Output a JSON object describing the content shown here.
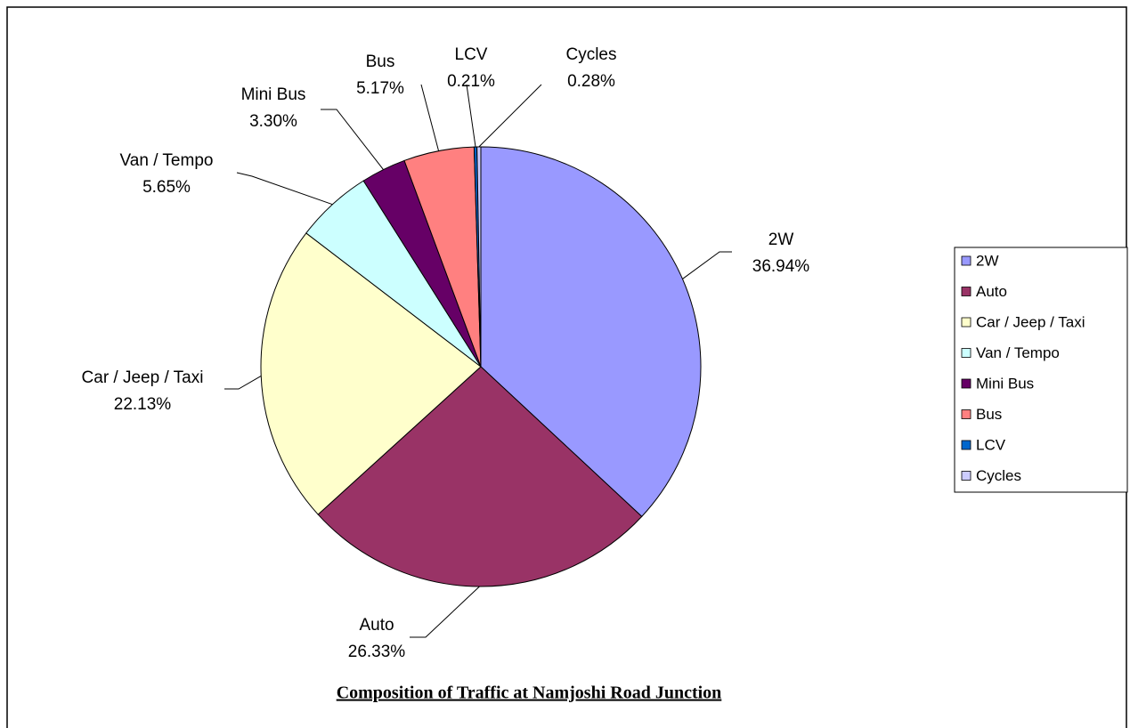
{
  "chart_data": {
    "type": "pie",
    "title": "Composition of Traffic at Namjoshi Road Junction",
    "categories": [
      "2W",
      "Auto",
      "Car / Jeep / Taxi",
      "Van / Tempo",
      "Mini Bus",
      "Bus",
      "LCV",
      "Cycles"
    ],
    "values": [
      36.94,
      26.33,
      22.13,
      5.65,
      3.3,
      5.17,
      0.21,
      0.28
    ],
    "value_labels": [
      "36.94%",
      "26.33%",
      "22.13%",
      "5.65%",
      "3.30%",
      "5.17%",
      "0.21%",
      "0.28%"
    ],
    "colors": [
      "#9999ff",
      "#993366",
      "#ffffcc",
      "#ccffff",
      "#660066",
      "#ff8080",
      "#0066cc",
      "#ccccff"
    ],
    "legend": "right"
  }
}
